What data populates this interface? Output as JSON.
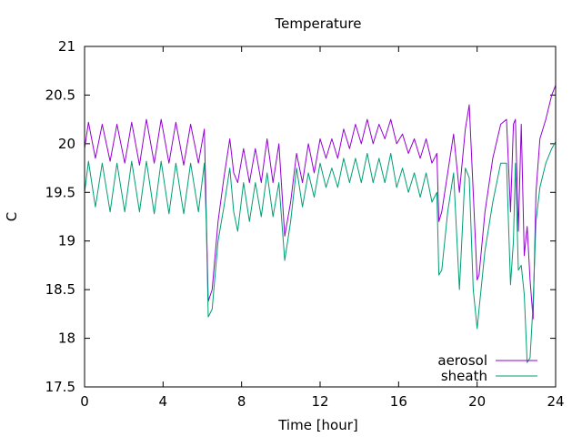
{
  "chart_data": {
    "type": "line",
    "title": "Temperature",
    "xlabel": "Time [hour]",
    "ylabel": "C",
    "xlim": [
      0,
      24
    ],
    "ylim": [
      17.5,
      21
    ],
    "xticks": [
      0,
      4,
      8,
      12,
      16,
      20,
      24
    ],
    "yticks": [
      17.5,
      18,
      18.5,
      19,
      19.5,
      20,
      20.5,
      21
    ],
    "grid": false,
    "legend_position": "bottom-right",
    "series": [
      {
        "name": "aerosol",
        "color": "#9400d3",
        "x": [
          0,
          0.2,
          0.55,
          0.9,
          1.3,
          1.65,
          2.05,
          2.4,
          2.8,
          3.15,
          3.55,
          3.9,
          4.3,
          4.65,
          5.05,
          5.4,
          5.8,
          6.1,
          6.2,
          6.3,
          6.5,
          6.8,
          7.1,
          7.4,
          7.6,
          7.8,
          8.1,
          8.4,
          8.7,
          9,
          9.3,
          9.6,
          9.9,
          10.2,
          10.5,
          10.8,
          11.1,
          11.4,
          11.7,
          12,
          12.3,
          12.6,
          12.9,
          13.2,
          13.5,
          13.8,
          14.1,
          14.4,
          14.7,
          15,
          15.3,
          15.6,
          15.9,
          16.2,
          16.5,
          16.8,
          17.1,
          17.4,
          17.7,
          17.95,
          18.05,
          18.2,
          18.5,
          18.8,
          19.1,
          19.4,
          19.6,
          19.8,
          20,
          20.1,
          20.4,
          20.8,
          21.2,
          21.5,
          21.7,
          21.85,
          21.95,
          22.1,
          22.25,
          22.4,
          22.55,
          22.7,
          22.85,
          23,
          23.2,
          23.5,
          23.8,
          24
        ],
        "y": [
          19.95,
          20.22,
          19.85,
          20.2,
          19.82,
          20.2,
          19.8,
          20.22,
          19.78,
          20.25,
          19.8,
          20.25,
          19.8,
          20.22,
          19.78,
          20.2,
          19.8,
          20.15,
          19.3,
          18.38,
          18.5,
          19.2,
          19.65,
          20.05,
          19.7,
          19.6,
          19.95,
          19.6,
          19.95,
          19.6,
          20.05,
          19.6,
          20,
          19.05,
          19.4,
          19.9,
          19.6,
          20.0,
          19.7,
          20.05,
          19.85,
          20.05,
          19.85,
          20.15,
          19.95,
          20.2,
          20.0,
          20.25,
          20.0,
          20.2,
          20.05,
          20.25,
          20.0,
          20.1,
          19.9,
          20.05,
          19.85,
          20.05,
          19.8,
          19.9,
          19.2,
          19.3,
          19.7,
          20.1,
          19.5,
          20.15,
          20.4,
          19.5,
          18.6,
          18.65,
          19.3,
          19.85,
          20.2,
          20.25,
          19.3,
          20.2,
          20.25,
          19.1,
          20.2,
          18.85,
          19.15,
          18.6,
          18.2,
          19.5,
          20.05,
          20.25,
          20.5,
          20.6
        ]
      },
      {
        "name": "sheath",
        "color": "#009e73",
        "x": [
          0,
          0.2,
          0.55,
          0.9,
          1.3,
          1.65,
          2.05,
          2.4,
          2.8,
          3.15,
          3.55,
          3.9,
          4.3,
          4.65,
          5.05,
          5.4,
          5.8,
          6.1,
          6.2,
          6.3,
          6.5,
          6.8,
          7.1,
          7.4,
          7.6,
          7.8,
          8.1,
          8.4,
          8.7,
          9,
          9.3,
          9.6,
          9.9,
          10.2,
          10.5,
          10.8,
          11.1,
          11.4,
          11.7,
          12,
          12.3,
          12.6,
          12.9,
          13.2,
          13.5,
          13.8,
          14.1,
          14.4,
          14.7,
          15,
          15.3,
          15.6,
          15.9,
          16.2,
          16.5,
          16.8,
          17.1,
          17.4,
          17.7,
          17.95,
          18.05,
          18.2,
          18.5,
          18.8,
          19.1,
          19.4,
          19.6,
          19.8,
          20,
          20.1,
          20.4,
          20.8,
          21.2,
          21.5,
          21.7,
          21.85,
          21.95,
          22.1,
          22.25,
          22.4,
          22.55,
          22.7,
          22.85,
          23,
          23.2,
          23.5,
          23.8,
          24
        ],
        "y": [
          19.5,
          19.82,
          19.35,
          19.8,
          19.3,
          19.8,
          19.3,
          19.82,
          19.3,
          19.82,
          19.28,
          19.82,
          19.28,
          19.8,
          19.28,
          19.8,
          19.3,
          19.8,
          19.2,
          18.22,
          18.3,
          19.0,
          19.35,
          19.75,
          19.3,
          19.1,
          19.6,
          19.2,
          19.6,
          19.25,
          19.7,
          19.25,
          19.6,
          18.8,
          19.2,
          19.75,
          19.35,
          19.7,
          19.45,
          19.8,
          19.55,
          19.75,
          19.55,
          19.85,
          19.6,
          19.85,
          19.6,
          19.9,
          19.6,
          19.85,
          19.6,
          19.9,
          19.55,
          19.75,
          19.5,
          19.7,
          19.45,
          19.7,
          19.4,
          19.5,
          18.65,
          18.7,
          19.3,
          19.7,
          18.5,
          19.75,
          19.65,
          18.5,
          18.1,
          18.3,
          18.9,
          19.4,
          19.8,
          19.8,
          18.55,
          19.0,
          19.8,
          18.7,
          18.75,
          18.45,
          17.75,
          17.8,
          18.35,
          19.2,
          19.55,
          19.8,
          19.95,
          20.02
        ]
      }
    ]
  }
}
